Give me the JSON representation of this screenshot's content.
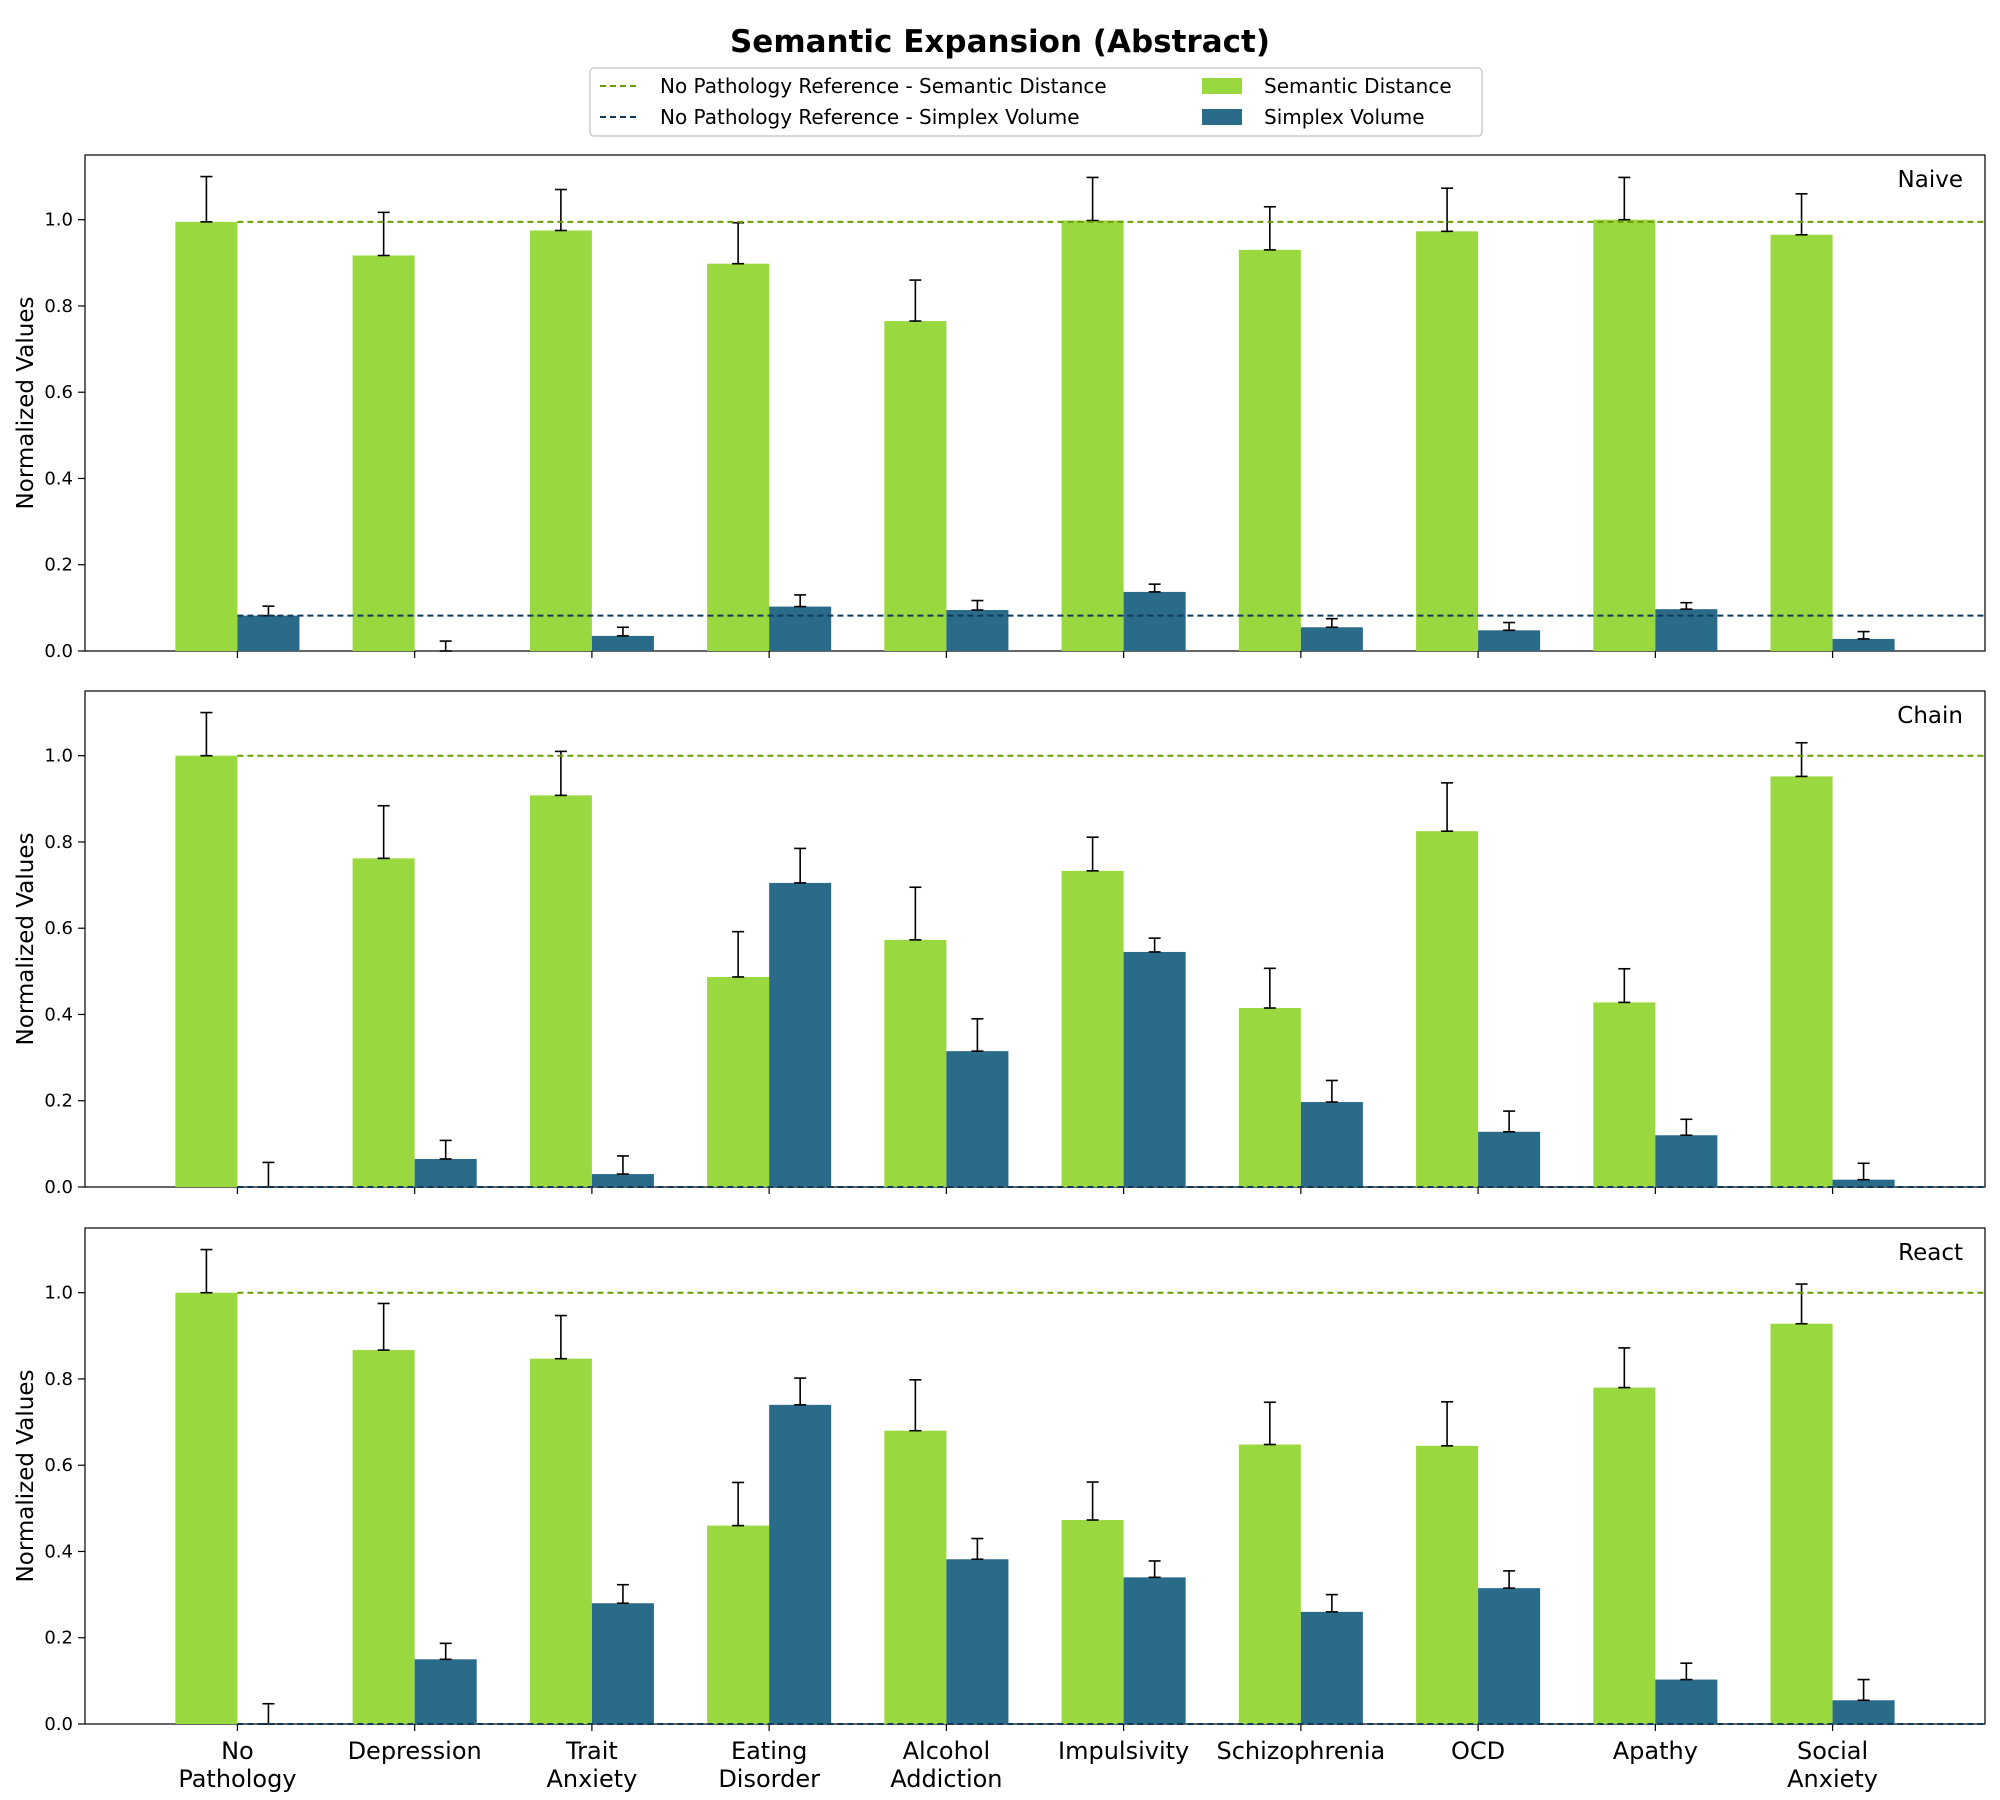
{
  "colors": {
    "semantic": "#9ad83f",
    "simplex": "#2b6b8a",
    "ref_semantic": "#6a9e00",
    "ref_simplex": "#0f3a5c",
    "errorbar": "#000000"
  },
  "legend": {
    "ref_semantic": "No Pathology Reference - Semantic Distance",
    "ref_simplex": "No Pathology Reference - Simplex Volume",
    "semantic": "Semantic Distance",
    "simplex": "Simplex Volume"
  },
  "chart_data": {
    "type": "bar",
    "title": "Semantic Expansion (Abstract)",
    "ylabel": "Normalized Values",
    "ylim": [
      0,
      1.15
    ],
    "yticks": [
      0.0,
      0.2,
      0.4,
      0.6,
      0.8,
      1.0
    ],
    "categories": [
      "No\nPathology",
      "Depression",
      "Trait\nAnxiety",
      "Eating\nDisorder",
      "Alcohol\nAddiction",
      "Impulsivity",
      "Schizophrenia",
      "OCD",
      "Apathy",
      "Social\nAnxiety"
    ],
    "legend_position": "top-center",
    "panels": [
      {
        "name": "Naive",
        "reference": {
          "semantic": 0.995,
          "simplex": 0.082
        },
        "series": [
          {
            "name": "Semantic Distance",
            "values": [
              0.995,
              0.917,
              0.975,
              0.898,
              0.765,
              0.998,
              0.93,
              0.973,
              1.0,
              0.965
            ],
            "errors": [
              0.105,
              0.1,
              0.095,
              0.095,
              0.095,
              0.1,
              0.1,
              0.1,
              0.098,
              0.095
            ]
          },
          {
            "name": "Simplex Volume",
            "values": [
              0.082,
              0.0,
              0.035,
              0.103,
              0.095,
              0.137,
              0.055,
              0.048,
              0.097,
              0.028
            ],
            "errors": [
              0.022,
              0.023,
              0.02,
              0.027,
              0.022,
              0.018,
              0.02,
              0.018,
              0.015,
              0.017
            ]
          }
        ]
      },
      {
        "name": "Chain",
        "reference": {
          "semantic": 1.0,
          "simplex": 0.0
        },
        "series": [
          {
            "name": "Semantic Distance",
            "values": [
              1.0,
              0.762,
              0.908,
              0.487,
              0.573,
              0.733,
              0.415,
              0.825,
              0.428,
              0.952
            ],
            "errors": [
              0.1,
              0.122,
              0.102,
              0.105,
              0.122,
              0.078,
              0.092,
              0.112,
              0.078,
              0.078
            ]
          },
          {
            "name": "Simplex Volume",
            "values": [
              0.0,
              0.065,
              0.03,
              0.705,
              0.315,
              0.545,
              0.197,
              0.128,
              0.12,
              0.017
            ],
            "errors": [
              0.057,
              0.043,
              0.042,
              0.08,
              0.075,
              0.032,
              0.05,
              0.048,
              0.037,
              0.038
            ]
          }
        ]
      },
      {
        "name": "React",
        "reference": {
          "semantic": 1.0,
          "simplex": 0.0
        },
        "series": [
          {
            "name": "Semantic Distance",
            "values": [
              1.0,
              0.867,
              0.847,
              0.46,
              0.68,
              0.473,
              0.648,
              0.645,
              0.78,
              0.928
            ],
            "errors": [
              0.1,
              0.108,
              0.1,
              0.1,
              0.118,
              0.088,
              0.098,
              0.102,
              0.092,
              0.092
            ]
          },
          {
            "name": "Simplex Volume",
            "values": [
              0.0,
              0.15,
              0.28,
              0.74,
              0.382,
              0.34,
              0.26,
              0.315,
              0.103,
              0.055
            ],
            "errors": [
              0.047,
              0.037,
              0.043,
              0.062,
              0.048,
              0.038,
              0.04,
              0.04,
              0.038,
              0.048
            ]
          }
        ]
      }
    ]
  }
}
